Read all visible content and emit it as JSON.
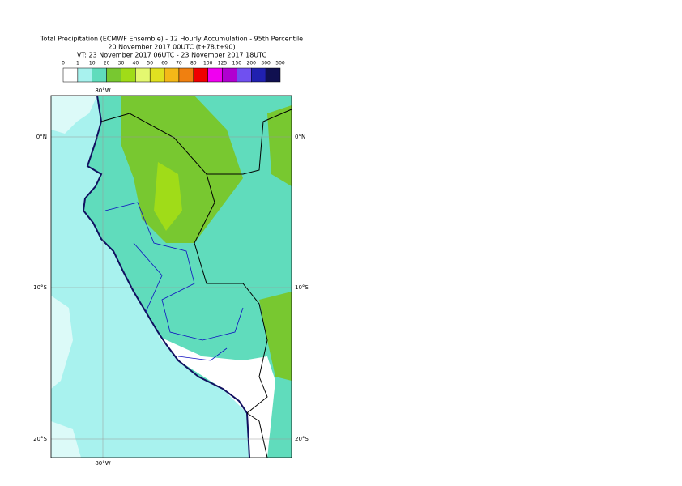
{
  "header": {
    "title": "Total Precipitation (ECMWF Ensemble) - 12 Hourly Accumulation - 95th Percentile",
    "subtitle": "20 November 2017 00UTC (t+78,t+90)",
    "valid_time": "VT: 23 November 2017 06UTC - 23 November 2017 18UTC"
  },
  "legend": {
    "labels": [
      "0",
      "1",
      "10",
      "20",
      "30",
      "40",
      "50",
      "60",
      "70",
      "80",
      "100",
      "125",
      "150",
      "200",
      "300",
      "500"
    ],
    "colors": [
      "#ffffff",
      "#a8f2ee",
      "#60dcbc",
      "#78c830",
      "#a0dc18",
      "#e4f870",
      "#e0e020",
      "#f4b818",
      "#f08010",
      "#f00000",
      "#f000f0",
      "#b000d0",
      "#7050f0",
      "#2020b0",
      "#101050"
    ]
  },
  "map": {
    "lon_label": "80°W",
    "lat_labels": [
      "0°N",
      "10°S",
      "20°S"
    ]
  }
}
